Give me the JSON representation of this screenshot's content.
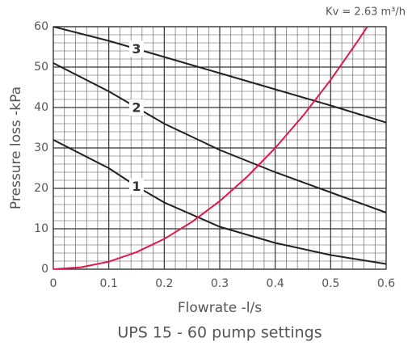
{
  "chart_data": {
    "type": "line",
    "title": "UPS 15 - 60 pump settings",
    "annotation": "Kv = 2.63 m³/h",
    "xlabel": "Flowrate -l/s",
    "ylabel": "Pressure loss -kPa",
    "xlim": [
      0,
      0.6
    ],
    "ylim": [
      0,
      60
    ],
    "xticks": [
      0,
      0.1,
      0.2,
      0.3,
      0.4,
      0.5,
      0.6
    ],
    "yticks": [
      0,
      10,
      20,
      30,
      40,
      50,
      60
    ],
    "grid": true,
    "series": [
      {
        "name": "1",
        "color": "#222222",
        "x": [
          0,
          0.1,
          0.15,
          0.2,
          0.3,
          0.4,
          0.5,
          0.6
        ],
        "values": [
          32,
          25,
          20.5,
          16.5,
          10.5,
          6.5,
          3.5,
          1.3
        ]
      },
      {
        "name": "2",
        "color": "#222222",
        "x": [
          0,
          0.1,
          0.15,
          0.2,
          0.3,
          0.4,
          0.5,
          0.6
        ],
        "values": [
          51,
          44,
          40,
          36,
          29.5,
          24,
          19,
          14
        ]
      },
      {
        "name": "3",
        "color": "#222222",
        "x": [
          0,
          0.1,
          0.15,
          0.2,
          0.3,
          0.4,
          0.5,
          0.6
        ],
        "values": [
          60,
          56.5,
          54.5,
          52.5,
          48.5,
          44.5,
          40.5,
          36.3
        ]
      },
      {
        "color": "#e0174a",
        "x": [
          0,
          0.05,
          0.1,
          0.15,
          0.2,
          0.25,
          0.3,
          0.35,
          0.4,
          0.45,
          0.5,
          0.55,
          0.566
        ],
        "values": [
          0,
          0.47,
          1.87,
          4.22,
          7.49,
          11.71,
          16.86,
          22.95,
          29.98,
          37.94,
          46.84,
          56.68,
          60
        ]
      }
    ]
  }
}
